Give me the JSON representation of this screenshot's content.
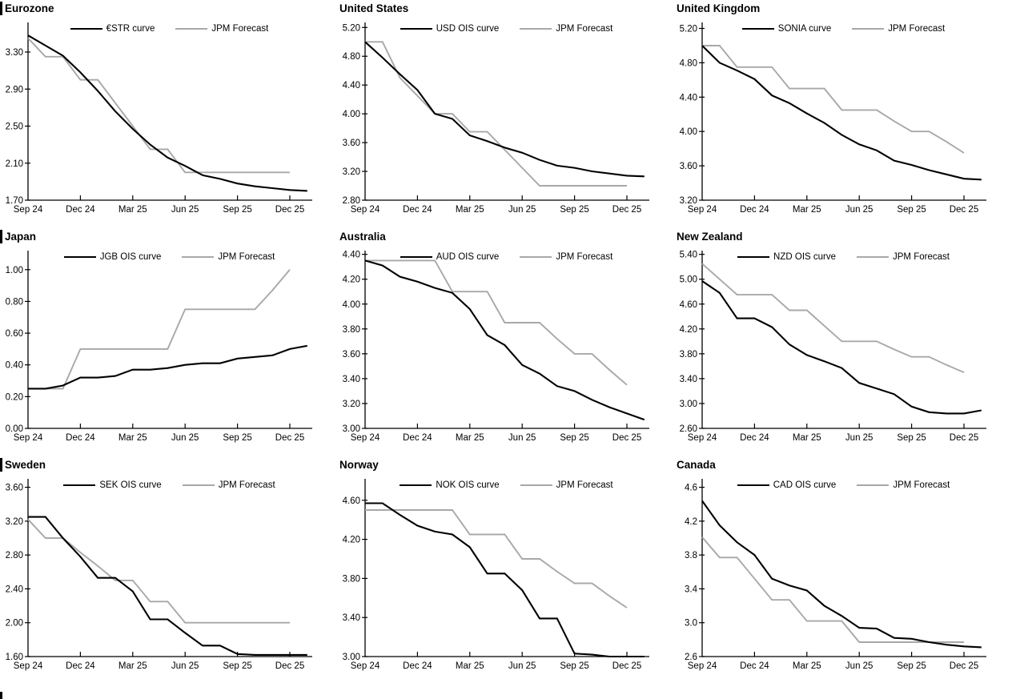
{
  "page": {
    "background": "#ffffff"
  },
  "chart_data": {
    "type": "line",
    "layout": "3x3 small multiples, monthly points Sep 2024 - Dec 2025, OIS curve extends one month past Dec 25",
    "x_months": [
      "Sep 24",
      "Oct 24",
      "Nov 24",
      "Dec 24",
      "Jan 25",
      "Feb 25",
      "Mar 25",
      "Apr 25",
      "May 25",
      "Jun 25",
      "Jul 25",
      "Aug 25",
      "Sep 25",
      "Oct 25",
      "Nov 25",
      "Dec 25"
    ],
    "colors": {
      "curve": "#000000",
      "forecast": "#a8a8a8"
    },
    "charts": [
      {
        "title": "Eurozone",
        "title_bar": true,
        "y_axis": {
          "ticks": [
            "1.70",
            "2.10",
            "2.50",
            "2.90",
            "3.30"
          ],
          "min": 1.7,
          "top": 3.62
        },
        "x_axis": {
          "labels": [
            "Sep 24",
            "Dec 24",
            "Mar 25",
            "Jun 25",
            "Sep 25",
            "Dec 25"
          ]
        },
        "series": [
          {
            "name": "€STR curve",
            "color": "#000000",
            "width": 2.1,
            "values": [
              3.48,
              3.37,
              3.26,
              3.08,
              2.88,
              2.66,
              2.47,
              2.3,
              2.16,
              2.07,
              1.97,
              1.93,
              1.88,
              1.85,
              1.83,
              1.81,
              1.8
            ]
          },
          {
            "name": "JPM Forecast",
            "color": "#a8a8a8",
            "width": 1.9,
            "values": [
              3.45,
              3.25,
              3.25,
              3.0,
              3.0,
              2.75,
              2.5,
              2.25,
              2.25,
              2.0,
              2.0,
              2.0,
              2.0,
              2.0,
              2.0,
              2.0
            ]
          }
        ]
      },
      {
        "title": "United States",
        "title_bar": false,
        "y_axis": {
          "ticks": [
            "2.80",
            "3.20",
            "3.60",
            "4.00",
            "4.40",
            "4.80",
            "5.20"
          ],
          "min": 2.8,
          "top": 5.27
        },
        "x_axis": {
          "labels": [
            "Sep 24",
            "Dec 24",
            "Mar 25",
            "Jun 25",
            "Sep 25",
            "Dec 25"
          ]
        },
        "series": [
          {
            "name": "USD OIS curve",
            "color": "#000000",
            "width": 2.1,
            "values": [
              5.0,
              4.78,
              4.55,
              4.33,
              4.0,
              3.93,
              3.7,
              3.62,
              3.53,
              3.46,
              3.36,
              3.28,
              3.25,
              3.2,
              3.17,
              3.14,
              3.13
            ]
          },
          {
            "name": "JPM Forecast",
            "color": "#a8a8a8",
            "width": 1.9,
            "values": [
              5.0,
              5.0,
              4.5,
              4.25,
              4.0,
              4.0,
              3.75,
              3.75,
              3.5,
              3.25,
              3.0,
              3.0,
              3.0,
              3.0,
              3.0,
              3.0
            ]
          }
        ]
      },
      {
        "title": "United Kingdom",
        "title_bar": false,
        "y_axis": {
          "ticks": [
            "3.20",
            "3.60",
            "4.00",
            "4.40",
            "4.80",
            "5.20"
          ],
          "min": 3.2,
          "top": 5.27
        },
        "x_axis": {
          "labels": [
            "Sep 24",
            "Dec 24",
            "Mar 25",
            "Jun 25",
            "Sep 25",
            "Dec 25"
          ]
        },
        "series": [
          {
            "name": "SONIA curve",
            "color": "#000000",
            "width": 2.1,
            "values": [
              5.0,
              4.8,
              4.71,
              4.61,
              4.42,
              4.33,
              4.21,
              4.1,
              3.96,
              3.85,
              3.78,
              3.66,
              3.61,
              3.55,
              3.5,
              3.45,
              3.44
            ]
          },
          {
            "name": "JPM Forecast",
            "color": "#a8a8a8",
            "width": 1.9,
            "values": [
              5.0,
              5.0,
              4.75,
              4.75,
              4.75,
              4.5,
              4.5,
              4.5,
              4.25,
              4.25,
              4.25,
              4.12,
              4.0,
              4.0,
              3.88,
              3.75
            ]
          }
        ]
      },
      {
        "title": "Japan",
        "title_bar": true,
        "y_axis": {
          "ticks": [
            "0.00",
            "0.20",
            "0.40",
            "0.60",
            "0.80",
            "1.00"
          ],
          "min": 0.0,
          "top": 1.12
        },
        "x_axis": {
          "labels": [
            "Sep 24",
            "Dec 24",
            "Mar 25",
            "Jun 25",
            "Sep 25",
            "Dec 25"
          ]
        },
        "series": [
          {
            "name": "JGB OIS curve",
            "color": "#000000",
            "width": 2.1,
            "values": [
              0.25,
              0.25,
              0.27,
              0.32,
              0.32,
              0.33,
              0.37,
              0.37,
              0.38,
              0.4,
              0.41,
              0.41,
              0.44,
              0.45,
              0.46,
              0.5,
              0.52
            ]
          },
          {
            "name": "JPM Forecast",
            "color": "#a8a8a8",
            "width": 1.9,
            "values": [
              0.25,
              0.25,
              0.25,
              0.5,
              0.5,
              0.5,
              0.5,
              0.5,
              0.5,
              0.75,
              0.75,
              0.75,
              0.75,
              0.75,
              0.87,
              1.0
            ]
          }
        ]
      },
      {
        "title": "Australia",
        "title_bar": false,
        "y_axis": {
          "ticks": [
            "3.00",
            "3.20",
            "3.40",
            "3.60",
            "3.80",
            "4.00",
            "4.20",
            "4.40"
          ],
          "min": 3.0,
          "top": 4.43
        },
        "x_axis": {
          "labels": [
            "Sep 24",
            "Dec 24",
            "Mar 25",
            "Jun 25",
            "Sep 25",
            "Dec 25"
          ]
        },
        "series": [
          {
            "name": "AUD OIS curve",
            "color": "#000000",
            "width": 2.1,
            "values": [
              4.35,
              4.31,
              4.22,
              4.18,
              4.13,
              4.09,
              3.96,
              3.75,
              3.67,
              3.51,
              3.44,
              3.34,
              3.3,
              3.23,
              3.17,
              3.12,
              3.07
            ]
          },
          {
            "name": "JPM Forecast",
            "color": "#a8a8a8",
            "width": 1.9,
            "values": [
              4.35,
              4.35,
              4.35,
              4.35,
              4.35,
              4.1,
              4.1,
              4.1,
              3.85,
              3.85,
              3.85,
              3.72,
              3.6,
              3.6,
              3.47,
              3.35
            ]
          }
        ]
      },
      {
        "title": "New Zealand",
        "title_bar": false,
        "y_axis": {
          "ticks": [
            "2.60",
            "3.00",
            "3.40",
            "3.80",
            "4.20",
            "4.60",
            "5.00",
            "5.40"
          ],
          "min": 2.6,
          "top": 5.46
        },
        "x_axis": {
          "labels": [
            "Sep 24",
            "Dec 24",
            "Mar 25",
            "Jun 25",
            "Sep 25",
            "Dec 25"
          ]
        },
        "series": [
          {
            "name": "NZD OIS curve",
            "color": "#000000",
            "width": 2.1,
            "values": [
              4.97,
              4.78,
              4.37,
              4.37,
              4.23,
              3.95,
              3.78,
              3.68,
              3.57,
              3.33,
              3.24,
              3.15,
              2.95,
              2.86,
              2.84,
              2.84,
              2.89
            ]
          },
          {
            "name": "JPM Forecast",
            "color": "#a8a8a8",
            "width": 1.9,
            "values": [
              5.25,
              5.0,
              4.75,
              4.75,
              4.75,
              4.5,
              4.5,
              4.25,
              4.0,
              4.0,
              4.0,
              3.87,
              3.75,
              3.75,
              3.62,
              3.5
            ]
          }
        ]
      },
      {
        "title": "Sweden",
        "title_bar": true,
        "y_axis": {
          "ticks": [
            "1.60",
            "2.00",
            "2.40",
            "2.80",
            "3.20",
            "3.60"
          ],
          "min": 1.6,
          "top": 3.7
        },
        "x_axis": {
          "labels": [
            "Sep 24",
            "Dec 24",
            "Mar 25",
            "Jun 25",
            "Sep 25",
            "Dec 25"
          ]
        },
        "series": [
          {
            "name": "SEK OIS curve",
            "color": "#000000",
            "width": 2.1,
            "values": [
              3.25,
              3.25,
              3.0,
              2.78,
              2.53,
              2.53,
              2.37,
              2.04,
              2.04,
              1.88,
              1.73,
              1.73,
              1.63,
              1.62,
              1.62,
              1.62,
              1.62
            ]
          },
          {
            "name": "JPM Forecast",
            "color": "#a8a8a8",
            "width": 1.9,
            "values": [
              3.22,
              3.0,
              3.0,
              2.83,
              2.67,
              2.5,
              2.5,
              2.25,
              2.25,
              2.0,
              2.0,
              2.0,
              2.0,
              2.0,
              2.0,
              2.0
            ]
          }
        ]
      },
      {
        "title": "Norway",
        "title_bar": false,
        "y_axis": {
          "ticks": [
            "3.00",
            "3.40",
            "3.80",
            "4.20",
            "4.60"
          ],
          "min": 3.0,
          "top": 4.82
        },
        "x_axis": {
          "labels": [
            "Sep 24",
            "Dec 24",
            "Mar 25",
            "Jun 25",
            "Sep 25",
            "Dec 25"
          ]
        },
        "series": [
          {
            "name": "NOK OIS curve",
            "color": "#000000",
            "width": 2.1,
            "values": [
              4.57,
              4.57,
              4.45,
              4.34,
              4.28,
              4.25,
              4.12,
              3.85,
              3.85,
              3.68,
              3.39,
              3.39,
              3.03,
              3.02,
              3.0,
              3.0,
              3.0
            ]
          },
          {
            "name": "JPM Forecast",
            "color": "#a8a8a8",
            "width": 1.9,
            "values": [
              4.5,
              4.5,
              4.5,
              4.5,
              4.5,
              4.5,
              4.25,
              4.25,
              4.25,
              4.0,
              4.0,
              3.87,
              3.75,
              3.75,
              3.62,
              3.5
            ]
          }
        ]
      },
      {
        "title": "Canada",
        "title_bar": false,
        "y_axis": {
          "ticks": [
            "2.6",
            "3.0",
            "3.4",
            "3.8",
            "4.2",
            "4.6"
          ],
          "min": 2.6,
          "top": 4.7
        },
        "x_axis": {
          "labels": [
            "Sep 24",
            "Dec 24",
            "Mar 25",
            "Jun 25",
            "Sep 25",
            "Dec 25"
          ]
        },
        "series": [
          {
            "name": "CAD OIS curve",
            "color": "#000000",
            "width": 2.1,
            "values": [
              4.44,
              4.15,
              3.95,
              3.8,
              3.52,
              3.44,
              3.38,
              3.2,
              3.08,
              2.94,
              2.93,
              2.82,
              2.81,
              2.77,
              2.74,
              2.72,
              2.71
            ]
          },
          {
            "name": "JPM Forecast",
            "color": "#a8a8a8",
            "width": 1.9,
            "values": [
              4.01,
              3.77,
              3.77,
              3.52,
              3.27,
              3.27,
              3.02,
              3.02,
              3.02,
              2.77,
              2.77,
              2.77,
              2.77,
              2.77,
              2.77,
              2.77
            ]
          }
        ]
      }
    ]
  }
}
